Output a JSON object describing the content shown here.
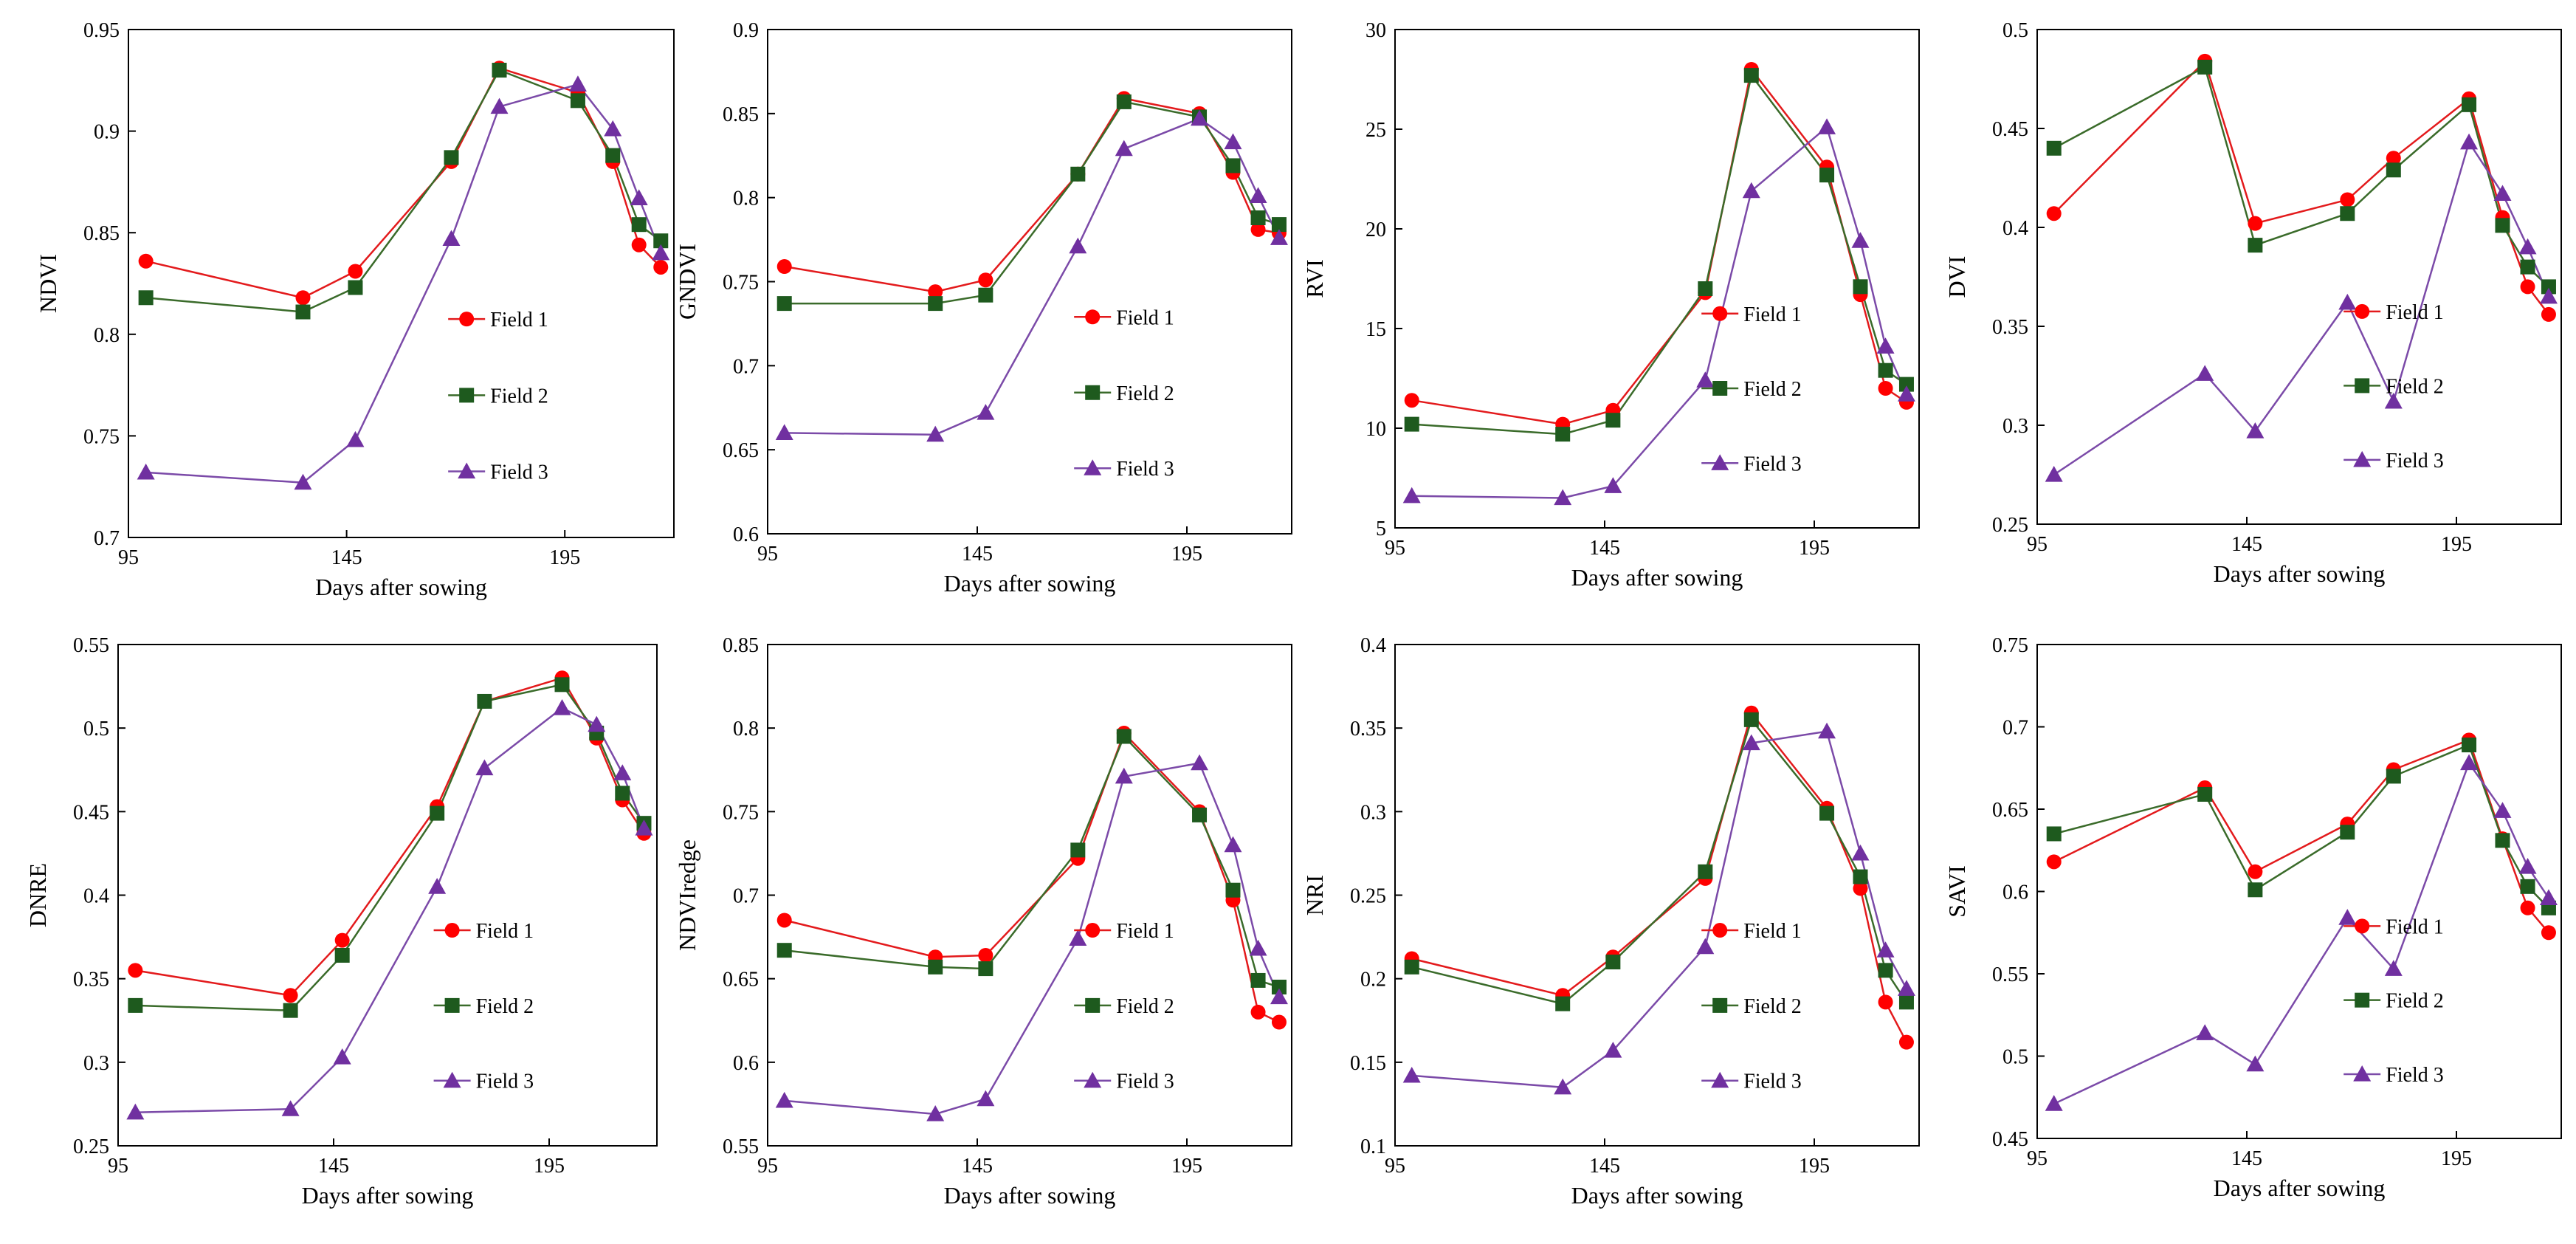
{
  "figure_title": "",
  "colors": {
    "field1": "#ff0000",
    "field2": "#1e5a1e",
    "field3": "#7030a0",
    "line1": "#e31a1c",
    "line2": "#3a6b2a",
    "line3": "#7b4aa8"
  },
  "chart_data": [
    {
      "type": "line",
      "title": "",
      "xlabel": "Days after sowing",
      "ylabel": "NDVI",
      "xlim": [
        95,
        220
      ],
      "xticks": [
        "95",
        "145",
        "195"
      ],
      "ylim": [
        0.7,
        0.95
      ],
      "yticks": [
        "0.7",
        "0.75",
        "0.8",
        "0.85",
        "0.9",
        "0.95"
      ],
      "legend_position": "lower-right",
      "x": [
        99,
        135,
        147,
        169,
        180,
        198,
        206,
        212,
        217
      ],
      "series": [
        {
          "name": "Field 1",
          "values": [
            0.836,
            0.818,
            0.831,
            0.885,
            0.931,
            0.919,
            0.885,
            0.844,
            0.833
          ]
        },
        {
          "name": "Field 2",
          "values": [
            0.818,
            0.811,
            0.823,
            0.887,
            0.93,
            0.915,
            0.888,
            0.854,
            0.846
          ]
        },
        {
          "name": "Field 3",
          "values": [
            0.732,
            0.727,
            0.748,
            0.847,
            0.912,
            0.923,
            0.901,
            0.867,
            0.84
          ]
        }
      ]
    },
    {
      "type": "line",
      "title": "",
      "xlabel": "Days after sowing",
      "ylabel": "GNDVI",
      "xlim": [
        95,
        220
      ],
      "xticks": [
        "95",
        "145",
        "195"
      ],
      "ylim": [
        0.6,
        0.9
      ],
      "yticks": [
        "0.6",
        "0.65",
        "0.7",
        "0.75",
        "0.8",
        "0.85",
        "0.9"
      ],
      "legend_position": "lower-right",
      "x": [
        99,
        135,
        147,
        169,
        180,
        198,
        206,
        212,
        217
      ],
      "series": [
        {
          "name": "Field 1",
          "values": [
            0.759,
            0.744,
            0.751,
            0.814,
            0.859,
            0.85,
            0.815,
            0.781,
            0.779
          ]
        },
        {
          "name": "Field 2",
          "values": [
            0.737,
            0.737,
            0.742,
            0.814,
            0.857,
            0.848,
            0.819,
            0.788,
            0.784
          ]
        },
        {
          "name": "Field 3",
          "values": [
            0.66,
            0.659,
            0.672,
            0.771,
            0.829,
            0.847,
            0.833,
            0.801,
            0.776
          ]
        }
      ]
    },
    {
      "type": "line",
      "title": "",
      "xlabel": "Days after sowing",
      "ylabel": "RVI",
      "xlim": [
        95,
        220
      ],
      "xticks": [
        "95",
        "145",
        "195"
      ],
      "ylim": [
        5,
        30
      ],
      "yticks": [
        "5",
        "10",
        "15",
        "20",
        "25",
        "30"
      ],
      "legend_position": "lower-right",
      "x": [
        99,
        135,
        147,
        169,
        180,
        198,
        206,
        212,
        217
      ],
      "series": [
        {
          "name": "Field 1",
          "values": [
            11.4,
            10.2,
            10.9,
            16.8,
            28.0,
            23.1,
            16.7,
            12.0,
            11.3
          ]
        },
        {
          "name": "Field 2",
          "values": [
            10.2,
            9.7,
            10.4,
            17.0,
            27.7,
            22.7,
            17.1,
            12.9,
            12.2
          ]
        },
        {
          "name": "Field 3",
          "values": [
            6.6,
            6.5,
            7.1,
            12.4,
            21.9,
            25.1,
            19.4,
            14.1,
            11.7
          ]
        }
      ]
    },
    {
      "type": "line",
      "title": "",
      "xlabel": "Days after sowing",
      "ylabel": "DVI",
      "xlim": [
        95,
        220
      ],
      "xticks": [
        "95",
        "145",
        "195"
      ],
      "ylim": [
        0.25,
        0.5
      ],
      "yticks": [
        "0.25",
        "0.3",
        "0.35",
        "0.4",
        "0.45",
        "0.5"
      ],
      "legend_position": "lower-right",
      "x": [
        99,
        135,
        147,
        169,
        180,
        198,
        206,
        212,
        217
      ],
      "series": [
        {
          "name": "Field 1",
          "values": [
            0.407,
            0.484,
            0.402,
            0.414,
            0.435,
            0.465,
            0.405,
            0.37,
            0.356
          ]
        },
        {
          "name": "Field 2",
          "values": [
            0.44,
            0.481,
            0.391,
            0.407,
            0.429,
            0.462,
            0.401,
            0.38,
            0.37
          ]
        },
        {
          "name": "Field 3",
          "values": [
            0.275,
            0.326,
            0.297,
            0.362,
            0.312,
            0.443,
            0.417,
            0.39,
            0.365
          ]
        }
      ]
    },
    {
      "type": "line",
      "title": "",
      "xlabel": "Days after sowing",
      "ylabel": "DNRE",
      "xlim": [
        95,
        220
      ],
      "xticks": [
        "95",
        "145",
        "195"
      ],
      "ylim": [
        0.25,
        0.55
      ],
      "yticks": [
        "0.25",
        "0.3",
        "0.35",
        "0.4",
        "0.45",
        "0.5",
        "0.55"
      ],
      "legend_position": "lower-right",
      "x": [
        99,
        135,
        147,
        169,
        180,
        198,
        206,
        212,
        217
      ],
      "series": [
        {
          "name": "Field 1",
          "values": [
            0.355,
            0.34,
            0.373,
            0.453,
            0.516,
            0.53,
            0.494,
            0.457,
            0.437
          ]
        },
        {
          "name": "Field 2",
          "values": [
            0.334,
            0.331,
            0.364,
            0.449,
            0.516,
            0.526,
            0.497,
            0.461,
            0.443
          ]
        },
        {
          "name": "Field 3",
          "values": [
            0.27,
            0.272,
            0.303,
            0.405,
            0.476,
            0.512,
            0.502,
            0.473,
            0.44
          ]
        }
      ]
    },
    {
      "type": "line",
      "title": "",
      "xlabel": "Days after sowing",
      "ylabel": "NDVIredge",
      "xlim": [
        95,
        220
      ],
      "xticks": [
        "95",
        "145",
        "195"
      ],
      "ylim": [
        0.55,
        0.85
      ],
      "yticks": [
        "0.55",
        "0.6",
        "0.65",
        "0.7",
        "0.75",
        "0.8",
        "0.85"
      ],
      "legend_position": "lower-right",
      "x": [
        99,
        135,
        147,
        169,
        180,
        198,
        206,
        212,
        217
      ],
      "series": [
        {
          "name": "Field 1",
          "values": [
            0.685,
            0.663,
            0.664,
            0.722,
            0.797,
            0.75,
            0.697,
            0.63,
            0.624
          ]
        },
        {
          "name": "Field 2",
          "values": [
            0.667,
            0.657,
            0.656,
            0.727,
            0.795,
            0.748,
            0.703,
            0.649,
            0.645
          ]
        },
        {
          "name": "Field 3",
          "values": [
            0.577,
            0.569,
            0.578,
            0.674,
            0.771,
            0.779,
            0.73,
            0.668,
            0.639
          ]
        }
      ]
    },
    {
      "type": "line",
      "title": "",
      "xlabel": "Days after sowing",
      "ylabel": "NRI",
      "xlim": [
        95,
        220
      ],
      "xticks": [
        "95",
        "145",
        "195"
      ],
      "ylim": [
        0.1,
        0.4
      ],
      "yticks": [
        "0.1",
        "0.15",
        "0.2",
        "0.25",
        "0.3",
        "0.35",
        "0.4"
      ],
      "legend_position": "lower-right",
      "x": [
        99,
        135,
        147,
        169,
        180,
        198,
        206,
        212,
        217
      ],
      "series": [
        {
          "name": "Field 1",
          "values": [
            0.212,
            0.19,
            0.213,
            0.26,
            0.359,
            0.302,
            0.254,
            0.186,
            0.162
          ]
        },
        {
          "name": "Field 2",
          "values": [
            0.207,
            0.185,
            0.21,
            0.264,
            0.355,
            0.299,
            0.261,
            0.205,
            0.186
          ]
        },
        {
          "name": "Field 3",
          "values": [
            0.142,
            0.135,
            0.157,
            0.219,
            0.341,
            0.348,
            0.275,
            0.217,
            0.194
          ]
        }
      ]
    },
    {
      "type": "line",
      "title": "",
      "xlabel": "Days after sowing",
      "ylabel": "SAVI",
      "xlim": [
        95,
        220
      ],
      "xticks": [
        "95",
        "145",
        "195"
      ],
      "ylim": [
        0.45,
        0.75
      ],
      "yticks": [
        "0.45",
        "0.5",
        "0.55",
        "0.6",
        "0.65",
        "0.7",
        "0.75"
      ],
      "legend_position": "lower-right",
      "x": [
        99,
        135,
        147,
        169,
        180,
        198,
        206,
        212,
        217
      ],
      "series": [
        {
          "name": "Field 1",
          "values": [
            0.618,
            0.663,
            0.612,
            0.641,
            0.674,
            0.692,
            0.632,
            0.59,
            0.575
          ]
        },
        {
          "name": "Field 2",
          "values": [
            0.635,
            0.659,
            0.601,
            0.636,
            0.67,
            0.689,
            0.631,
            0.603,
            0.59
          ]
        },
        {
          "name": "Field 3",
          "values": [
            0.471,
            0.514,
            0.495,
            0.584,
            0.553,
            0.678,
            0.649,
            0.615,
            0.596
          ]
        }
      ]
    }
  ]
}
